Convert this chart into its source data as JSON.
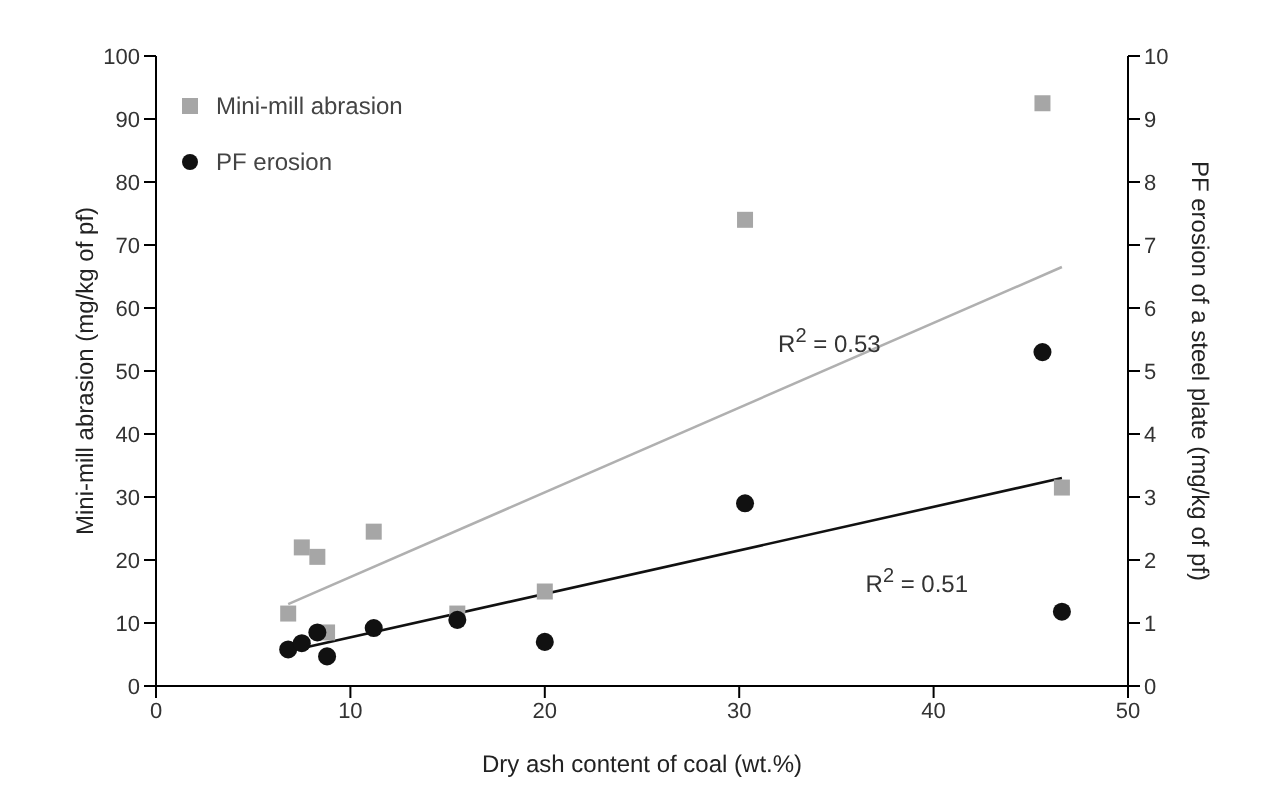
{
  "chart_data": {
    "type": "scatter",
    "xlabel": "Dry ash content of coal (wt.%)",
    "ylabel": "Mini-mill abrasion (mg/kg of pf)",
    "y2label": "PF erosion of a steel plate (mg/kg of pf)",
    "xlim": [
      0,
      50
    ],
    "xticks": [
      0,
      10,
      20,
      30,
      40,
      50
    ],
    "ylim": [
      0,
      100
    ],
    "yticks": [
      0,
      10,
      20,
      30,
      40,
      50,
      60,
      70,
      80,
      90,
      100
    ],
    "y2lim": [
      0,
      10
    ],
    "y2ticks": [
      0,
      1,
      2,
      3,
      4,
      5,
      6,
      7,
      8,
      9,
      10
    ],
    "series": [
      {
        "name": "Mini-mill abrasion",
        "marker": "square",
        "color": "#a6a6a6",
        "x": [
          6.8,
          7.5,
          8.3,
          8.8,
          11.2,
          15.5,
          20,
          30.3,
          45.6,
          46.6
        ],
        "values": [
          11.5,
          22,
          20.5,
          8.5,
          24.5,
          11.5,
          15,
          74,
          92.5,
          31.5
        ]
      },
      {
        "name": "PF erosion",
        "marker": "circle",
        "axis": "y2",
        "color": "#111111",
        "x": [
          6.8,
          7.5,
          8.3,
          8.8,
          11.2,
          15.5,
          20,
          30.3,
          45.6,
          46.6
        ],
        "values": [
          0.58,
          0.68,
          0.85,
          0.47,
          0.92,
          1.05,
          0.7,
          2.9,
          5.3,
          1.18
        ]
      },
      {
        "type": "line",
        "marker": "none",
        "color": "#b0b0b0",
        "x": [
          6.8,
          46.6
        ],
        "values": [
          13,
          66.5
        ]
      },
      {
        "type": "line",
        "marker": "none",
        "axis": "y2",
        "color": "#111111",
        "x": [
          6.8,
          46.6
        ],
        "values": [
          0.55,
          3.3
        ]
      }
    ],
    "annotations": [
      "R$^{2}$ = 0.53",
      "R$^{2}$ = 0.51"
    ],
    "legend": "top left",
    "grid": false
  }
}
